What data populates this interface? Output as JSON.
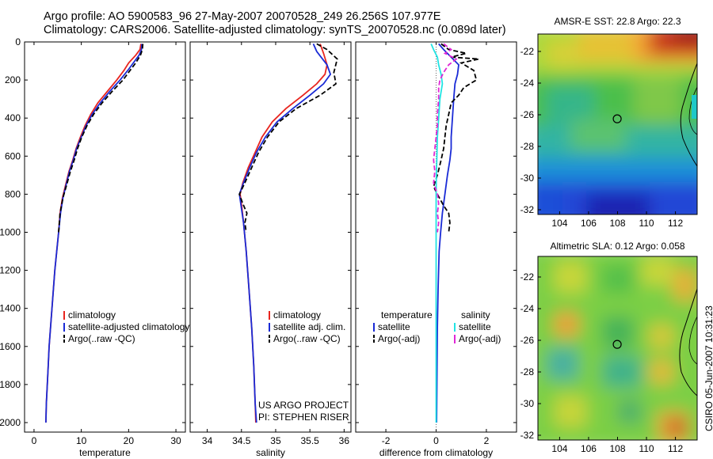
{
  "header": {
    "line1": "Argo profile: AO 5900583_96 27-May-2007 20070528_249 26.256S 107.977E",
    "line2": "Climatology: CARS2006. Satellite-adjusted climatology: synTS_20070528.nc (0.089d later)"
  },
  "side_label": "CSIRO 05-Jun-2007 10:31:23",
  "colors": {
    "climatology": "#e8251f",
    "satellite": "#1a2bd6",
    "argo": "#000000",
    "sal_satellite": "#22e3e3",
    "sal_argo": "#e027d6"
  },
  "chart_data": [
    {
      "type": "line",
      "id": "temperature",
      "xlabel": "temperature",
      "ylabel": "",
      "xlim": [
        -2,
        32
      ],
      "ylim": [
        2050,
        0
      ],
      "x_ticks": [
        0,
        10,
        20,
        30
      ],
      "y_ticks": [
        0,
        200,
        400,
        600,
        800,
        1000,
        1200,
        1400,
        1600,
        1800,
        2000
      ],
      "legend": [
        "climatology",
        "satellite-adjusted climatology",
        "Argo(..raw -QC)"
      ],
      "series": [
        {
          "name": "climatology",
          "style": "solid",
          "color": "climatology",
          "points": [
            [
              22.6,
              10
            ],
            [
              22.4,
              40
            ],
            [
              21.5,
              70
            ],
            [
              20,
              110
            ],
            [
              19,
              150
            ],
            [
              17.5,
              200
            ],
            [
              15.5,
              260
            ],
            [
              13.5,
              320
            ],
            [
              12,
              380
            ],
            [
              10.8,
              440
            ],
            [
              9.8,
              500
            ],
            [
              8.9,
              560
            ],
            [
              8.2,
              620
            ],
            [
              7.4,
              680
            ],
            [
              6.6,
              760
            ],
            [
              6,
              820
            ],
            [
              5.5,
              900
            ],
            [
              5.2,
              1000
            ],
            [
              4.8,
              1100
            ],
            [
              4.4,
              1200
            ],
            [
              4.1,
              1300
            ],
            [
              3.8,
              1400
            ],
            [
              3.5,
              1500
            ],
            [
              3.2,
              1600
            ],
            [
              3,
              1700
            ],
            [
              2.8,
              1800
            ],
            [
              2.6,
              1900
            ],
            [
              2.5,
              2000
            ]
          ]
        },
        {
          "name": "satellite-adjusted climatology",
          "style": "solid",
          "color": "satellite",
          "points": [
            [
              22.8,
              10
            ],
            [
              22.7,
              40
            ],
            [
              22.2,
              70
            ],
            [
              21,
              110
            ],
            [
              19.8,
              150
            ],
            [
              18.2,
              200
            ],
            [
              16,
              260
            ],
            [
              14,
              320
            ],
            [
              12.3,
              380
            ],
            [
              11,
              440
            ],
            [
              10,
              500
            ],
            [
              9,
              560
            ],
            [
              8.3,
              620
            ],
            [
              7.5,
              680
            ],
            [
              6.7,
              760
            ],
            [
              6.1,
              820
            ],
            [
              5.6,
              900
            ],
            [
              5.2,
              1000
            ],
            [
              4.8,
              1100
            ],
            [
              4.4,
              1200
            ],
            [
              4.1,
              1300
            ],
            [
              3.8,
              1400
            ],
            [
              3.5,
              1500
            ],
            [
              3.2,
              1600
            ],
            [
              3,
              1700
            ],
            [
              2.8,
              1800
            ],
            [
              2.6,
              1900
            ],
            [
              2.5,
              2000
            ]
          ]
        },
        {
          "name": "Argo(..raw -QC)",
          "style": "dashed",
          "color": "argo",
          "points": [
            [
              23,
              10
            ],
            [
              22.9,
              40
            ],
            [
              22.5,
              70
            ],
            [
              21.5,
              110
            ],
            [
              20.3,
              150
            ],
            [
              18.8,
              200
            ],
            [
              16.5,
              260
            ],
            [
              14.4,
              320
            ],
            [
              12.6,
              380
            ],
            [
              11.2,
              440
            ],
            [
              10.1,
              500
            ],
            [
              9.2,
              560
            ],
            [
              8.5,
              620
            ],
            [
              7.7,
              680
            ],
            [
              6.8,
              760
            ],
            [
              6.1,
              820
            ],
            [
              5.5,
              900
            ],
            [
              5.2,
              1000
            ]
          ]
        }
      ]
    },
    {
      "type": "line",
      "id": "salinity",
      "xlabel": "salinity",
      "xlim": [
        33.75,
        36.1
      ],
      "ylim": [
        2050,
        0
      ],
      "x_ticks": [
        34,
        34.5,
        35,
        35.5,
        36
      ],
      "legend": [
        "climatology",
        "satellite adj. clim.",
        "Argo(..raw -QC)"
      ],
      "annotation": [
        "US ARGO PROJECT",
        "PI: STEPHEN RISER"
      ],
      "series": [
        {
          "name": "climatology",
          "style": "solid",
          "color": "climatology",
          "points": [
            [
              35.65,
              10
            ],
            [
              35.7,
              60
            ],
            [
              35.75,
              120
            ],
            [
              35.72,
              170
            ],
            [
              35.6,
              220
            ],
            [
              35.4,
              280
            ],
            [
              35.15,
              350
            ],
            [
              34.95,
              420
            ],
            [
              34.8,
              500
            ],
            [
              34.7,
              580
            ],
            [
              34.6,
              660
            ],
            [
              34.52,
              740
            ],
            [
              34.48,
              800
            ],
            [
              34.5,
              850
            ],
            [
              34.53,
              950
            ],
            [
              34.57,
              1100
            ],
            [
              34.61,
              1300
            ],
            [
              34.65,
              1500
            ],
            [
              34.68,
              1700
            ],
            [
              34.7,
              1900
            ],
            [
              34.71,
              2000
            ]
          ]
        },
        {
          "name": "satellite adj. clim.",
          "style": "solid",
          "color": "satellite",
          "points": [
            [
              35.55,
              10
            ],
            [
              35.6,
              50
            ],
            [
              35.75,
              120
            ],
            [
              35.8,
              170
            ],
            [
              35.7,
              220
            ],
            [
              35.5,
              280
            ],
            [
              35.25,
              350
            ],
            [
              35.02,
              420
            ],
            [
              34.85,
              500
            ],
            [
              34.72,
              580
            ],
            [
              34.62,
              660
            ],
            [
              34.53,
              740
            ],
            [
              34.47,
              800
            ],
            [
              34.49,
              850
            ],
            [
              34.53,
              950
            ],
            [
              34.57,
              1100
            ],
            [
              34.61,
              1300
            ],
            [
              34.65,
              1500
            ],
            [
              34.68,
              1700
            ],
            [
              34.7,
              1900
            ],
            [
              34.72,
              2000
            ]
          ]
        },
        {
          "name": "Argo(..raw -QC)",
          "style": "dashed",
          "color": "argo",
          "points": [
            [
              35.6,
              10
            ],
            [
              35.75,
              40
            ],
            [
              35.9,
              90
            ],
            [
              35.85,
              160
            ],
            [
              35.88,
              220
            ],
            [
              35.65,
              280
            ],
            [
              35.3,
              350
            ],
            [
              35.05,
              420
            ],
            [
              34.88,
              500
            ],
            [
              34.75,
              580
            ],
            [
              34.65,
              660
            ],
            [
              34.55,
              740
            ],
            [
              34.47,
              800
            ],
            [
              34.52,
              850
            ],
            [
              34.58,
              900
            ],
            [
              34.55,
              950
            ],
            [
              34.57,
              1000
            ]
          ]
        }
      ]
    },
    {
      "type": "line",
      "id": "difference",
      "xlabel": "difference from climatology",
      "xlim": [
        -3.2,
        3.2
      ],
      "ylim": [
        2050,
        0
      ],
      "x_ticks": [
        -2,
        0,
        2
      ],
      "legend_temperature": {
        "title": "temperature",
        "items": [
          "satellite",
          "Argo(-adj)"
        ]
      },
      "legend_salinity": {
        "title": "salinity",
        "items": [
          "satellite",
          "Argo(-adj)"
        ]
      },
      "series": [
        {
          "name": "temperature satellite",
          "style": "solid",
          "color": "satellite",
          "points": [
            [
              0.1,
              10
            ],
            [
              0.3,
              40
            ],
            [
              0.6,
              80
            ],
            [
              0.9,
              120
            ],
            [
              0.85,
              170
            ],
            [
              0.75,
              220
            ],
            [
              0.7,
              300
            ],
            [
              0.65,
              400
            ],
            [
              0.6,
              500
            ],
            [
              0.6,
              560
            ],
            [
              0.55,
              620
            ],
            [
              0.45,
              700
            ],
            [
              0.35,
              800
            ],
            [
              0.25,
              900
            ],
            [
              0.18,
              1000
            ],
            [
              0.12,
              1100
            ],
            [
              0.08,
              1300
            ],
            [
              0.05,
              1500
            ],
            [
              0.03,
              1800
            ],
            [
              0.02,
              2000
            ]
          ]
        },
        {
          "name": "temperature Argo(-adj)",
          "style": "dashed",
          "color": "argo",
          "points": [
            [
              0.2,
              10
            ],
            [
              0.5,
              40
            ],
            [
              1.2,
              60
            ],
            [
              0.6,
              80
            ],
            [
              1.7,
              90
            ],
            [
              1,
              110
            ],
            [
              1.5,
              150
            ],
            [
              1.6,
              200
            ],
            [
              1.1,
              240
            ],
            [
              0.9,
              280
            ],
            [
              0.6,
              320
            ],
            [
              0.5,
              380
            ],
            [
              0.4,
              440
            ],
            [
              0.35,
              500
            ],
            [
              0.3,
              560
            ],
            [
              0.2,
              620
            ],
            [
              0.05,
              700
            ],
            [
              -0.1,
              760
            ],
            [
              0.05,
              800
            ],
            [
              0.3,
              860
            ],
            [
              0.5,
              900
            ],
            [
              0.55,
              950
            ],
            [
              0.5,
              1000
            ]
          ]
        },
        {
          "name": "salinity satellite",
          "style": "solid",
          "color": "sal_satellite",
          "points": [
            [
              -0.2,
              10
            ],
            [
              -0.1,
              40
            ],
            [
              0.05,
              80
            ],
            [
              0.1,
              120
            ],
            [
              0.2,
              170
            ],
            [
              0.25,
              220
            ],
            [
              0.15,
              300
            ],
            [
              0.1,
              400
            ],
            [
              0.05,
              500
            ],
            [
              0.03,
              600
            ],
            [
              0.01,
              700
            ],
            [
              0,
              800
            ],
            [
              0,
              900
            ],
            [
              0,
              1000
            ],
            [
              0,
              1100
            ],
            [
              0,
              1300
            ],
            [
              0,
              1500
            ],
            [
              0,
              1800
            ],
            [
              0,
              2000
            ]
          ]
        },
        {
          "name": "salinity Argo(-adj)",
          "style": "dashed",
          "color": "sal_argo",
          "points": [
            [
              0.3,
              10
            ],
            [
              0.6,
              40
            ],
            [
              0.35,
              60
            ],
            [
              0.8,
              90
            ],
            [
              0.5,
              120
            ],
            [
              0.3,
              160
            ],
            [
              0.15,
              200
            ],
            [
              0.1,
              240
            ],
            [
              0.1,
              300
            ],
            [
              0.05,
              380
            ],
            [
              0.05,
              440
            ],
            [
              0,
              500
            ],
            [
              -0.05,
              560
            ],
            [
              -0.1,
              620
            ],
            [
              -0.05,
              680
            ],
            [
              -0.1,
              740
            ],
            [
              0.05,
              800
            ],
            [
              0.1,
              850
            ],
            [
              0.05,
              900
            ],
            [
              0.1,
              950
            ],
            [
              0.05,
              1000
            ]
          ]
        }
      ]
    },
    {
      "type": "heatmap",
      "id": "sst_map",
      "title": "AMSR-E SST: 22.8 Argo: 22.3",
      "xlim": [
        102.5,
        113.5
      ],
      "ylim": [
        -32.3,
        -20.9
      ],
      "x_ticks": [
        104,
        106,
        108,
        110,
        112
      ],
      "y_ticks": [
        -22,
        -24,
        -26,
        -28,
        -30,
        -32
      ],
      "marker": {
        "lon": 107.977,
        "lat": -26.256
      }
    },
    {
      "type": "heatmap",
      "id": "sla_map",
      "title": "Altimetric SLA: 0.12 Argo: 0.058",
      "xlim": [
        102.5,
        113.5
      ],
      "ylim": [
        -32.3,
        -20.7
      ],
      "x_ticks": [
        104,
        106,
        108,
        110,
        112
      ],
      "y_ticks": [
        -22,
        -24,
        -26,
        -28,
        -30,
        -32
      ],
      "marker": {
        "lon": 107.977,
        "lat": -26.256
      }
    }
  ]
}
